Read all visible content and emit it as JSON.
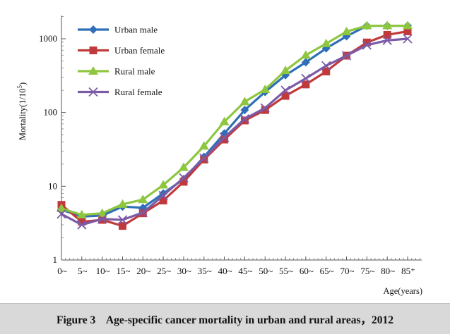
{
  "caption": {
    "label": "Figure 3",
    "text": "Age-specific cancer mortality in urban and rural areas，2012"
  },
  "chart_data": {
    "type": "line",
    "title": "",
    "xlabel": "Age(years)",
    "ylabel": "Mortality(1/10⁵)",
    "ylabel_main": "Mortality(1/10",
    "ylabel_sup": "5",
    "ylabel_end": ")",
    "y_scale": "log",
    "ylim": [
      1,
      1500
    ],
    "yticks": [
      1,
      10,
      100,
      1000
    ],
    "ytick_labels": [
      "1",
      "10",
      "100",
      "1000"
    ],
    "categories": [
      "0~",
      "5~",
      "10~",
      "15~",
      "20~",
      "25~",
      "30~",
      "35~",
      "40~",
      "45~",
      "50~",
      "55~",
      "60~",
      "65~",
      "70~",
      "75~",
      "80~",
      "85⁺"
    ],
    "grid": false,
    "legend_position": "top-left",
    "series": [
      {
        "name": "Urban male",
        "color": "#2e6fb7",
        "marker": "diamond",
        "values": [
          4.8,
          3.9,
          4.0,
          5.3,
          5.1,
          8.0,
          12.5,
          25,
          52,
          108,
          190,
          320,
          480,
          740,
          1080,
          1500,
          1500,
          1500
        ]
      },
      {
        "name": "Urban female",
        "color": "#c0393b",
        "marker": "square",
        "values": [
          5.6,
          3.3,
          3.5,
          2.9,
          4.3,
          6.4,
          11.5,
          23,
          43,
          78,
          108,
          168,
          240,
          360,
          590,
          890,
          1130,
          1260
        ]
      },
      {
        "name": "Rural male",
        "color": "#8ec63f",
        "marker": "triangle",
        "values": [
          5.0,
          4.1,
          4.3,
          5.7,
          6.6,
          10.4,
          18,
          35,
          75,
          140,
          205,
          370,
          600,
          860,
          1250,
          1500,
          1500,
          1500
        ]
      },
      {
        "name": "Rural female",
        "color": "#7b5aa6",
        "marker": "x",
        "values": [
          4.2,
          3.0,
          3.6,
          3.5,
          4.4,
          7.5,
          13.0,
          24,
          46,
          82,
          115,
          200,
          290,
          430,
          590,
          820,
          950,
          1000
        ]
      }
    ]
  }
}
